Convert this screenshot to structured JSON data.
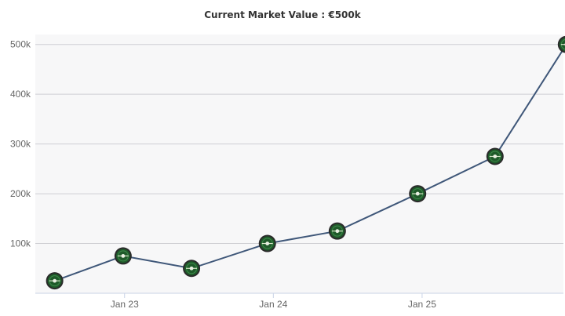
{
  "chart_data": {
    "type": "line",
    "title": "Current Market Value : €500k",
    "xlabel": "",
    "ylabel": "",
    "x_ticks": [
      "Jan 23",
      "Jan 24",
      "Jan 25"
    ],
    "y_ticks": [
      "100k",
      "200k",
      "300k",
      "400k",
      "500k"
    ],
    "y_tick_values": [
      100000,
      200000,
      300000,
      400000,
      500000
    ],
    "ylim": [
      0,
      520000
    ],
    "x_range": [
      2022.4,
      2025.95
    ],
    "series": [
      {
        "name": "Market Value",
        "color": "#3f5779",
        "points": [
          {
            "x": 2022.53,
            "value": 25000
          },
          {
            "x": 2022.99,
            "value": 75000
          },
          {
            "x": 2023.45,
            "value": 50000
          },
          {
            "x": 2023.96,
            "value": 100000
          },
          {
            "x": 2024.43,
            "value": 125000
          },
          {
            "x": 2024.97,
            "value": 200000
          },
          {
            "x": 2025.49,
            "value": 275000
          },
          {
            "x": 2025.97,
            "value": 500000
          }
        ]
      }
    ],
    "x_tick_positions": [
      2023.0,
      2024.0,
      2025.0
    ],
    "grid": true,
    "legend": "none",
    "marker_icon": "club-crest-icon",
    "plot_background": "#f7f7f8",
    "grid_color": "#cfcfd4"
  }
}
